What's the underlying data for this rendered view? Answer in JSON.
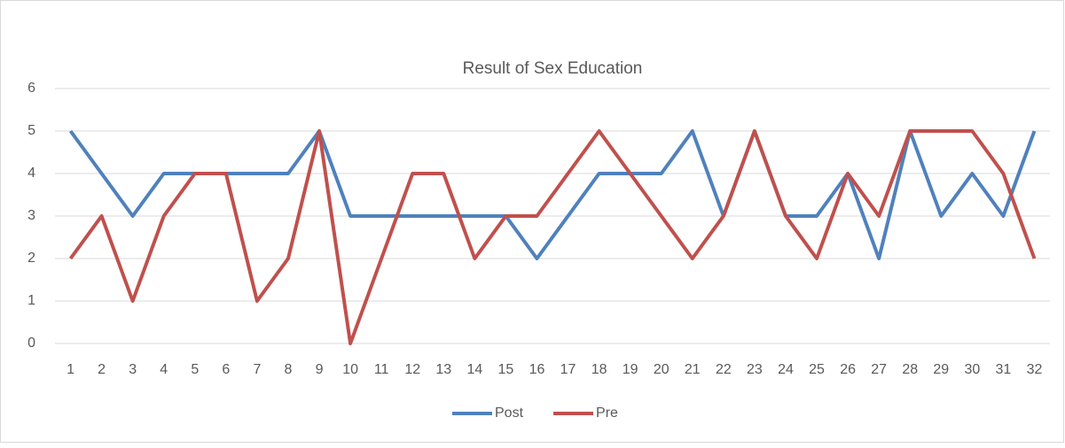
{
  "chart_data": {
    "type": "line",
    "title": "Result of Sex Education",
    "categories": [
      1,
      2,
      3,
      4,
      5,
      6,
      7,
      8,
      9,
      10,
      11,
      12,
      13,
      14,
      15,
      16,
      17,
      18,
      19,
      20,
      21,
      22,
      23,
      24,
      25,
      26,
      27,
      28,
      29,
      30,
      31,
      32
    ],
    "series": [
      {
        "name": "Post",
        "color": "#4f81bd",
        "values": [
          5,
          4,
          3,
          4,
          4,
          4,
          4,
          4,
          5,
          3,
          3,
          3,
          3,
          3,
          3,
          2,
          3,
          4,
          4,
          4,
          5,
          3,
          5,
          3,
          3,
          4,
          2,
          5,
          3,
          4,
          3,
          5
        ]
      },
      {
        "name": "Pre",
        "color": "#c0504d",
        "values": [
          2,
          3,
          1,
          3,
          4,
          4,
          1,
          2,
          5,
          0,
          2,
          4,
          4,
          2,
          3,
          3,
          4,
          5,
          4,
          3,
          2,
          3,
          5,
          3,
          2,
          4,
          3,
          5,
          5,
          5,
          4,
          2
        ]
      }
    ],
    "ylim": [
      0,
      6
    ],
    "yticks": [
      0,
      1,
      2,
      3,
      4,
      5,
      6
    ],
    "grid": true,
    "legend": "bottom"
  }
}
